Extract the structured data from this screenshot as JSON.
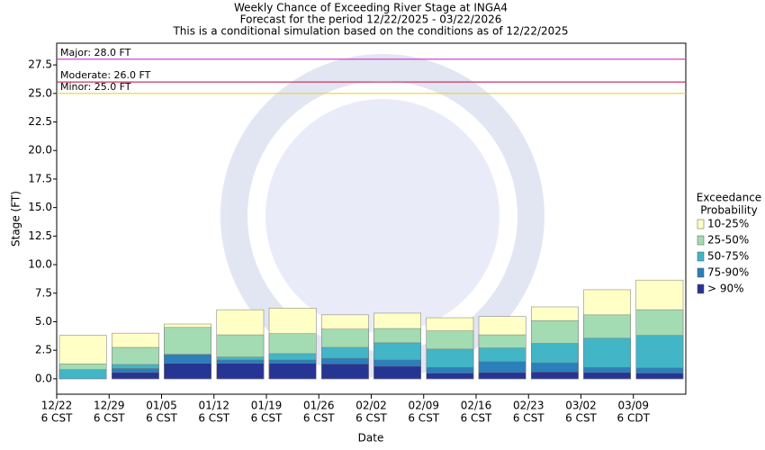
{
  "chart_data": {
    "type": "overlap-bar",
    "title": [
      "Weekly Chance of Exceeding River Stage at INGA4",
      "Forecast for the period 12/22/2025 - 03/22/2026",
      "This is a conditional simulation based on the conditions as of 12/22/2025"
    ],
    "x_label": "Date",
    "y_label": "Stage (FT)",
    "categories": [
      "12/22",
      "12/29",
      "01/05",
      "01/12",
      "01/19",
      "01/26",
      "02/02",
      "02/09",
      "02/16",
      "02/23",
      "03/02",
      "03/09"
    ],
    "category_sublabels": [
      "6 CST",
      "6 CST",
      "6 CST",
      "6 CST",
      "6 CST",
      "6 CST",
      "6 CST",
      "6 CST",
      "6 CST",
      "6 CST",
      "6 CST",
      "6 CDT"
    ],
    "legend_title": [
      "Exceedance",
      "Probability"
    ],
    "series": [
      {
        "name": "10-25%",
        "color": "#ffffc6",
        "values": [
          3.8,
          4.0,
          4.8,
          6.05,
          6.2,
          5.6,
          5.75,
          5.35,
          5.45,
          6.3,
          7.8,
          8.65
        ]
      },
      {
        "name": "25-50%",
        "color": "#a3dbb3",
        "values": [
          1.3,
          2.75,
          4.5,
          3.85,
          3.95,
          4.35,
          4.4,
          4.2,
          3.85,
          5.1,
          5.6,
          6.05
        ]
      },
      {
        "name": "50-75%",
        "color": "#42b5c6",
        "values": [
          0.8,
          1.25,
          2.15,
          1.9,
          2.2,
          2.75,
          3.15,
          2.6,
          2.7,
          3.1,
          3.55,
          3.8
        ]
      },
      {
        "name": "75-90%",
        "color": "#2b7fba",
        "values": [
          0,
          0.9,
          2.1,
          1.65,
          1.65,
          1.8,
          1.65,
          1.0,
          1.5,
          1.4,
          1.0,
          0.95
        ]
      },
      {
        "name": "> 90%",
        "color": "#263494",
        "values": [
          0,
          0.55,
          1.35,
          1.35,
          1.35,
          1.3,
          1.1,
          0.5,
          0.55,
          0.6,
          0.55,
          0.5
        ]
      }
    ],
    "thresholds": [
      {
        "label": "Major: 28.0 FT",
        "value": 28,
        "color": "#cc44cc"
      },
      {
        "label": "Moderate: 26.0 FT",
        "value": 26,
        "color": "#cc3366"
      },
      {
        "label": "Minor: 25.0 FT",
        "value": 25,
        "color": "#e6d433"
      }
    ],
    "ylim": [
      -1.35,
      29.4
    ],
    "yticks": [
      {
        "value": 0,
        "label": "0.0"
      },
      {
        "value": 2.5,
        "label": "2.5"
      },
      {
        "value": 5,
        "label": "5.0"
      },
      {
        "value": 7.5,
        "label": "7.5"
      },
      {
        "value": 10,
        "label": "10.0"
      },
      {
        "value": 12.5,
        "label": "12.5"
      },
      {
        "value": 15,
        "label": "15.0"
      },
      {
        "value": 17.5,
        "label": "17.5"
      },
      {
        "value": 20,
        "label": "20.0"
      },
      {
        "value": 22.5,
        "label": "22.5"
      },
      {
        "value": 25,
        "label": "25.0"
      },
      {
        "value": 27.5,
        "label": "27.5"
      }
    ]
  }
}
